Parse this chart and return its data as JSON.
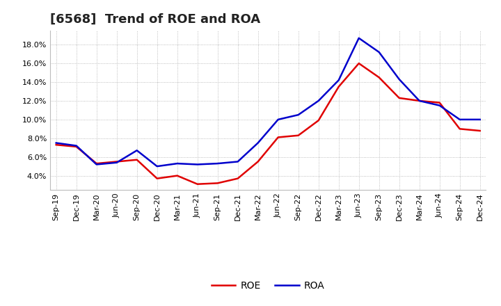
{
  "title": "[6568]  Trend of ROE and ROA",
  "labels": [
    "Sep-19",
    "Dec-19",
    "Mar-20",
    "Jun-20",
    "Sep-20",
    "Dec-20",
    "Mar-21",
    "Jun-21",
    "Sep-21",
    "Dec-21",
    "Mar-22",
    "Jun-22",
    "Sep-22",
    "Dec-22",
    "Mar-23",
    "Jun-23",
    "Sep-23",
    "Dec-23",
    "Mar-24",
    "Jun-24",
    "Sep-24",
    "Dec-24"
  ],
  "ROE": [
    7.3,
    7.1,
    5.3,
    5.5,
    5.7,
    3.7,
    4.0,
    3.1,
    3.2,
    3.7,
    5.5,
    8.1,
    8.3,
    9.9,
    13.5,
    16.0,
    14.5,
    12.3,
    12.0,
    11.8,
    9.0,
    8.8
  ],
  "ROA": [
    7.5,
    7.2,
    5.2,
    5.4,
    6.7,
    5.0,
    5.3,
    5.2,
    5.3,
    5.5,
    7.5,
    10.0,
    10.5,
    12.0,
    14.2,
    18.7,
    17.2,
    14.3,
    12.0,
    11.5,
    10.0,
    10.0
  ],
  "roe_color": "#e00000",
  "roa_color": "#0000cc",
  "background_color": "#ffffff",
  "plot_bg_color": "#ffffff",
  "ylim": [
    2.5,
    19.5
  ],
  "yticks": [
    4.0,
    6.0,
    8.0,
    10.0,
    12.0,
    14.0,
    16.0,
    18.0
  ],
  "title_fontsize": 13,
  "tick_fontsize": 8,
  "legend_fontsize": 10,
  "linewidth": 1.8
}
